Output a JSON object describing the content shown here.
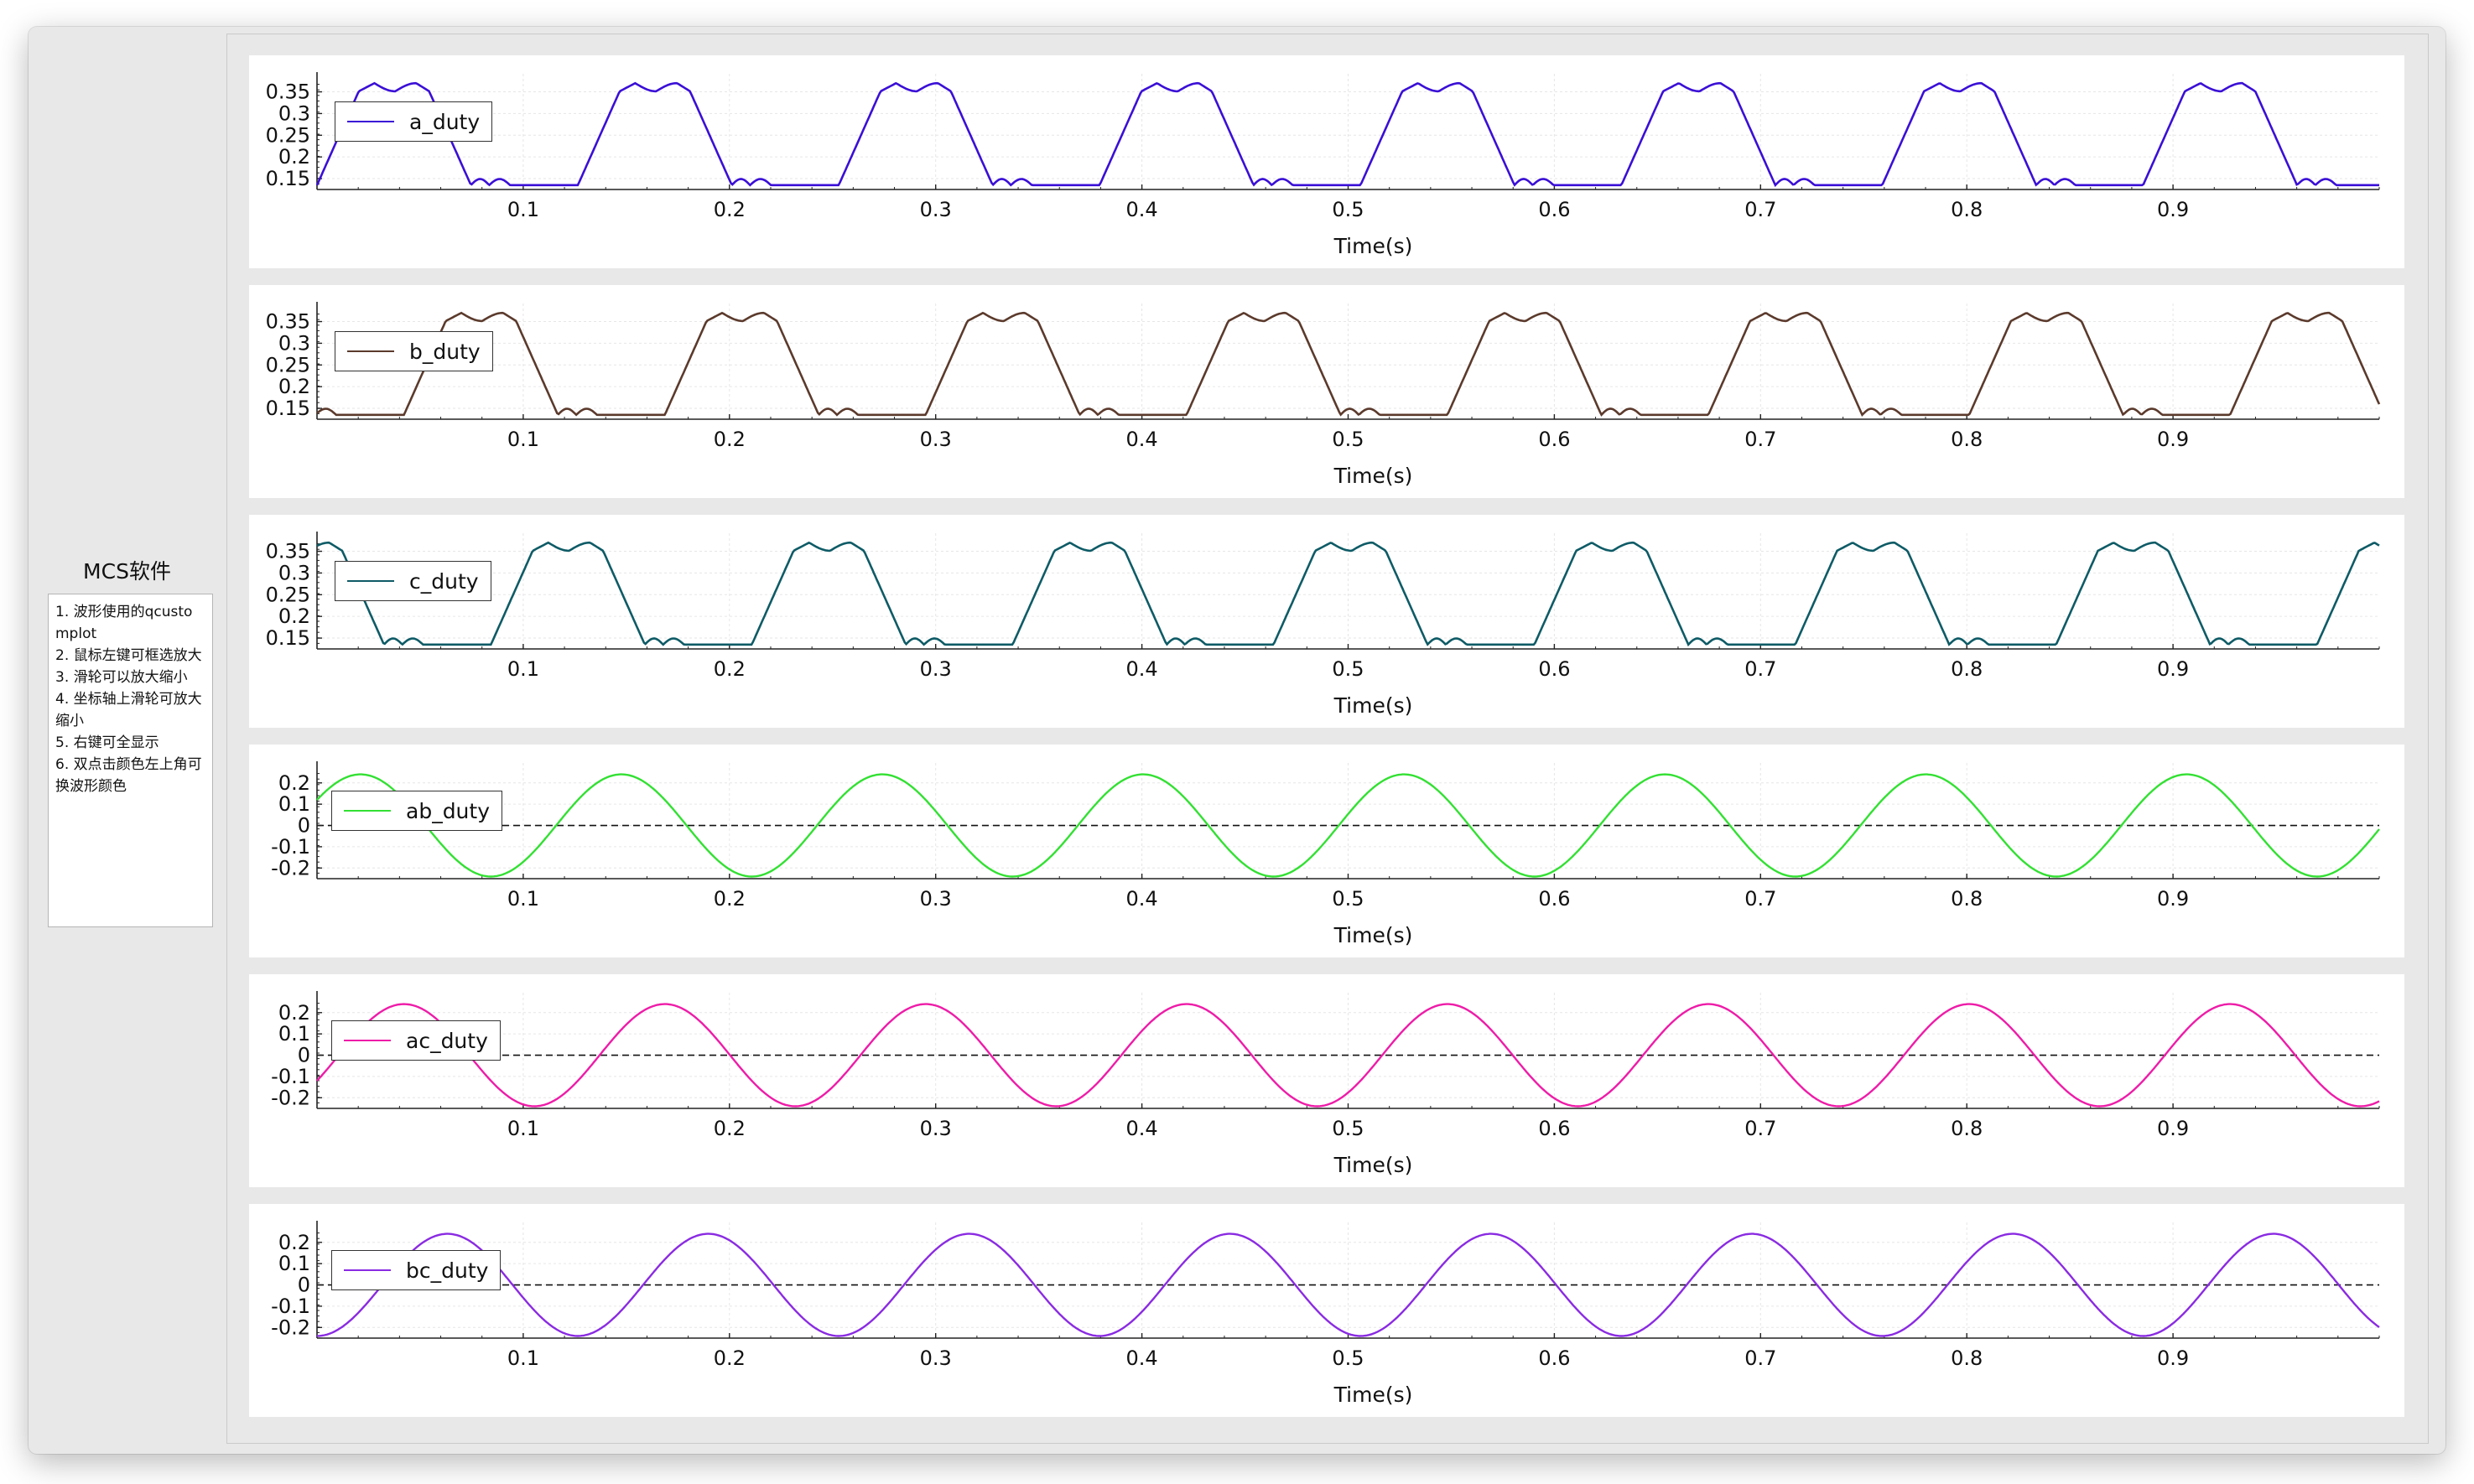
{
  "sidebar": {
    "title": "MCS软件",
    "notes": [
      "1. 波形使用的qcustomplot",
      "2. 鼠标左键可框选放大",
      "3. 滑轮可以放大缩小",
      "4. 坐标轴上滑轮可放大缩小",
      "5. 右键可全显示",
      "6. 双点击颜色左上角可换波形颜色"
    ]
  },
  "plots": [
    {
      "legend": "a_duty",
      "color": "#3a0fd6",
      "xlabel": "Time(s)",
      "kind": "duty",
      "phase": 0.0
    },
    {
      "legend": "b_duty",
      "color": "#5b3a2c",
      "xlabel": "Time(s)",
      "kind": "duty",
      "phase": -0.3333
    },
    {
      "legend": "c_duty",
      "color": "#0e5b66",
      "xlabel": "Time(s)",
      "kind": "duty",
      "phase": 0.3333
    },
    {
      "legend": "ab_duty",
      "color": "#33e033",
      "xlabel": "Time(s)",
      "kind": "line",
      "phase": 0.0833
    },
    {
      "legend": "ac_duty",
      "color": "#ee1ca8",
      "xlabel": "Time(s)",
      "kind": "line",
      "phase": -0.0833
    },
    {
      "legend": "bc_duty",
      "color": "#8a2be2",
      "xlabel": "Time(s)",
      "kind": "line",
      "phase": -0.25
    }
  ],
  "chart_data": [
    {
      "type": "line",
      "series": [
        {
          "name": "a_duty",
          "period": 0.1265,
          "min": 0.135,
          "max": 0.37
        }
      ],
      "xlabel": "Time(s)",
      "xlim": [
        0,
        1.0
      ],
      "ylim": [
        0.125,
        0.38
      ],
      "xticks": [
        "0.1",
        "0.2",
        "0.3",
        "0.4",
        "0.5",
        "0.6",
        "0.7",
        "0.8",
        "0.9"
      ],
      "yticks": [
        "0.15",
        "0.2",
        "0.25",
        "0.3",
        "0.35"
      ]
    },
    {
      "type": "line",
      "series": [
        {
          "name": "b_duty",
          "period": 0.1265,
          "min": 0.135,
          "max": 0.37
        }
      ],
      "xlabel": "Time(s)",
      "xlim": [
        0,
        1.0
      ],
      "ylim": [
        0.125,
        0.38
      ],
      "xticks": [
        "0.1",
        "0.2",
        "0.3",
        "0.4",
        "0.5",
        "0.6",
        "0.7",
        "0.8",
        "0.9"
      ],
      "yticks": [
        "0.15",
        "0.2",
        "0.25",
        "0.3",
        "0.35"
      ]
    },
    {
      "type": "line",
      "series": [
        {
          "name": "c_duty",
          "period": 0.1265,
          "min": 0.135,
          "max": 0.37
        }
      ],
      "xlabel": "Time(s)",
      "xlim": [
        0,
        1.0
      ],
      "ylim": [
        0.125,
        0.38
      ],
      "xticks": [
        "0.1",
        "0.2",
        "0.3",
        "0.4",
        "0.5",
        "0.6",
        "0.7",
        "0.8",
        "0.9"
      ],
      "yticks": [
        "0.15",
        "0.2",
        "0.25",
        "0.3",
        "0.35"
      ]
    },
    {
      "type": "line",
      "series": [
        {
          "name": "ab_duty",
          "period": 0.1265,
          "amplitude": 0.24
        }
      ],
      "xlabel": "Time(s)",
      "xlim": [
        0,
        1.0
      ],
      "ylim": [
        -0.25,
        0.27
      ],
      "xticks": [
        "0.1",
        "0.2",
        "0.3",
        "0.4",
        "0.5",
        "0.6",
        "0.7",
        "0.8",
        "0.9"
      ],
      "yticks": [
        "0.2",
        "0.1",
        "0",
        "-0.1",
        "-0.2"
      ]
    },
    {
      "type": "line",
      "series": [
        {
          "name": "ac_duty",
          "period": 0.1265,
          "amplitude": 0.24
        }
      ],
      "xlabel": "Time(s)",
      "xlim": [
        0,
        1.0
      ],
      "ylim": [
        -0.25,
        0.27
      ],
      "xticks": [
        "0.1",
        "0.2",
        "0.3",
        "0.4",
        "0.5",
        "0.6",
        "0.7",
        "0.8",
        "0.9"
      ],
      "yticks": [
        "0.2",
        "0.1",
        "0",
        "-0.1",
        "-0.2"
      ]
    },
    {
      "type": "line",
      "series": [
        {
          "name": "bc_duty",
          "period": 0.1265,
          "amplitude": 0.24
        }
      ],
      "xlabel": "Time(s)",
      "xlim": [
        0,
        1.0
      ],
      "ylim": [
        -0.25,
        0.27
      ],
      "xticks": [
        "0.1",
        "0.2",
        "0.3",
        "0.4",
        "0.5",
        "0.6",
        "0.7",
        "0.8",
        "0.9"
      ],
      "yticks": [
        "0.2",
        "0.1",
        "0",
        "-0.1",
        "-0.2"
      ]
    }
  ]
}
